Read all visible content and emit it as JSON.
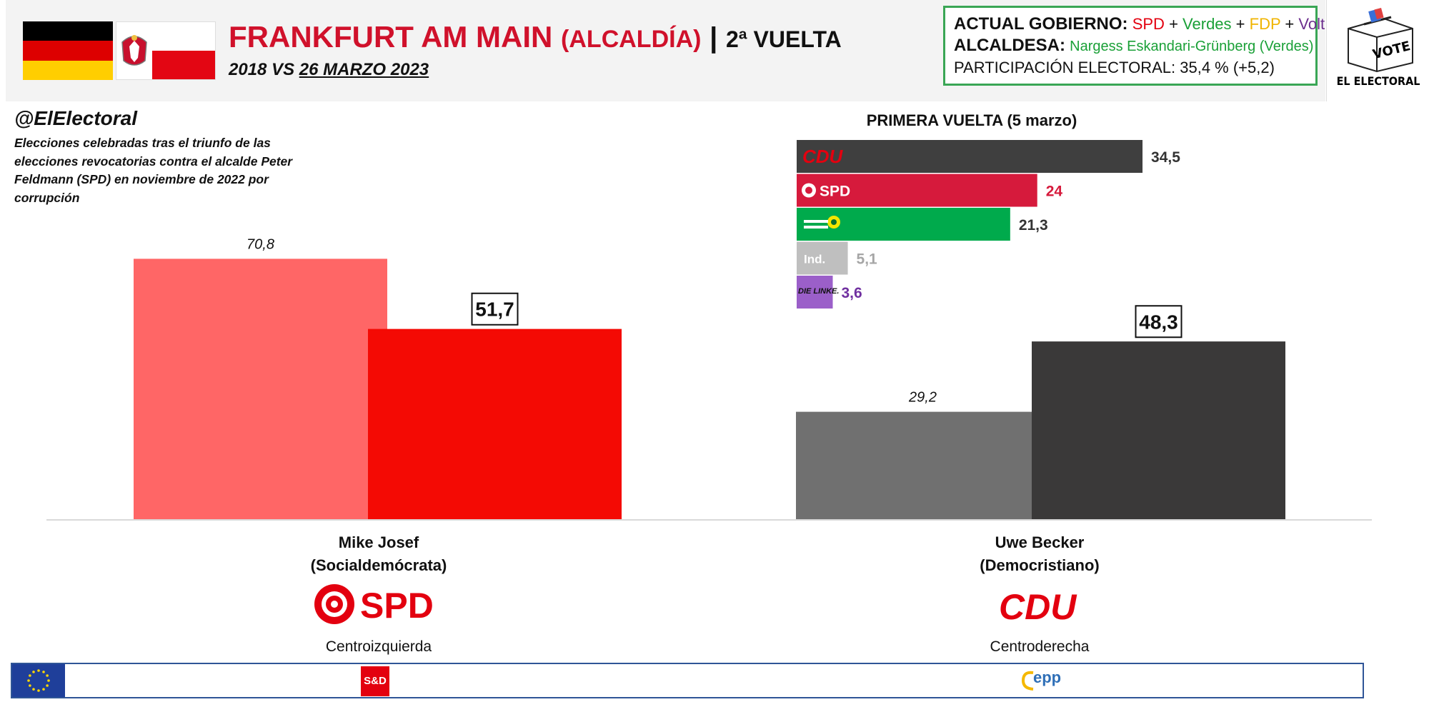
{
  "header": {
    "title": "FRANKFURT AM MAIN",
    "title_sub": "(ALCALDÍA)",
    "separator": "|",
    "round": "2ª VUELTA",
    "date_prefix": "2018 VS ",
    "date": "26 MARZO 2023"
  },
  "info": {
    "gov_label": "ACTUAL GOBIERNO:",
    "gov_parties": [
      "SPD",
      "Verdes",
      "FDP",
      "Volt"
    ],
    "gov_plus": "+",
    "mayor_label": "ALCALDESA:",
    "mayor_value": "Nargess Eskandari-Grünberg  (Verdes)",
    "turnout_label": "PARTICIPACIÓN ELECTORAL:",
    "turnout_value": "35,4 % (+5,2)"
  },
  "logo": {
    "text": "EL ELECTORAL",
    "box_text": "VOTE"
  },
  "annotation": {
    "handle": "@ElElectoral",
    "note": "Elecciones celebradas tras el triunfo de las elecciones revocatorias contra el alcalde Peter Feldmann (SPD) en noviembre de 2022 por corrupción"
  },
  "candidates": [
    {
      "name": "Mike Josef",
      "group": "(Socialdemócrata)",
      "party": "SPD",
      "ideology": "Centroizquierda",
      "eu_group": "S&D"
    },
    {
      "name": "Uwe Becker",
      "group": "(Democristiano)",
      "party": "CDU",
      "ideology": "Centroderecha",
      "eu_group": "epp"
    }
  ],
  "chart_data": [
    {
      "type": "bar",
      "title": "",
      "categories": [
        "Mike Josef",
        "Uwe Becker"
      ],
      "series": [
        {
          "name": "2018",
          "values": [
            70.8,
            29.2
          ],
          "labels": [
            "70,8",
            "29,2"
          ],
          "colors": [
            "#ff6666",
            "#707070"
          ]
        },
        {
          "name": "2023",
          "values": [
            51.7,
            48.3
          ],
          "labels": [
            "51,7",
            "48,3"
          ],
          "colors": [
            "#f40a04",
            "#3a3939"
          ]
        }
      ],
      "ylim": [
        0,
        100
      ]
    },
    {
      "type": "bar",
      "orientation": "horizontal",
      "title": "PRIMERA VUELTA (5 marzo)",
      "categories": [
        "CDU",
        "SPD",
        "Grünen",
        "Ind.",
        "DIE LINKE."
      ],
      "values": [
        34.5,
        24,
        21.3,
        5.1,
        3.6
      ],
      "labels": [
        "34,5",
        "24",
        "21,3",
        "5,1",
        "3,6"
      ],
      "colors": [
        "#3f3f3f",
        "#d61a3c",
        "#00aa4c",
        "#bfbfbf",
        "#9b5fc9"
      ],
      "label_colors": [
        "#333333",
        "#d61a3c",
        "#333333",
        "#a6a6a6",
        "#7030a0"
      ]
    }
  ]
}
